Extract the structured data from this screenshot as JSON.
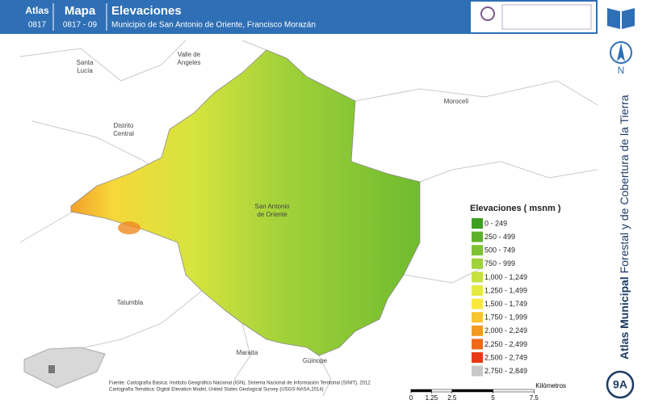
{
  "header": {
    "atlas_label": "Atlas",
    "atlas_code": "0817",
    "map_label": "Mapa",
    "map_code": "0817 - 09",
    "title": "Elevaciones",
    "subtitle": "Municipio de San Antonio de Oriente, Francisco Morazán"
  },
  "sidebar": {
    "north": "N",
    "title_bold": "Atlas Municipal",
    "title_rest": " Forestal y de Cobertura de la Tierra",
    "badge": "9A"
  },
  "places": {
    "santa_lucia": [
      "Santa",
      "Lucía"
    ],
    "valle_de_angeles": [
      "Valle",
      "de",
      "Angeles"
    ],
    "distrito_central": [
      "Distrito",
      "Central"
    ],
    "moroceli": [
      "Morocelí"
    ],
    "san_antonio": [
      "San Antonio",
      "de Oriente"
    ],
    "tatumbla": [
      "Tatumbla"
    ],
    "maraita": [
      "Maraita"
    ],
    "guinope": [
      "Güinope"
    ]
  },
  "legend": {
    "title": "Elevaciones ( msnm )",
    "items": [
      {
        "label": "0 - 249",
        "color": "#3f9e22"
      },
      {
        "label": "250 - 499",
        "color": "#5db12b"
      },
      {
        "label": "500 - 749",
        "color": "#7cc232"
      },
      {
        "label": "750 - 999",
        "color": "#a0d23a"
      },
      {
        "label": "1,000 - 1,249",
        "color": "#c6e03f"
      },
      {
        "label": "1,250 - 1,499",
        "color": "#e4ea3e"
      },
      {
        "label": "1,500 - 1,749",
        "color": "#f7e83c"
      },
      {
        "label": "1,750 - 1,999",
        "color": "#f8c42f"
      },
      {
        "label": "2,000 - 2,249",
        "color": "#f39a21"
      },
      {
        "label": "2,250 - 2,499",
        "color": "#ee6a1a"
      },
      {
        "label": "2,500 - 2,749",
        "color": "#e83a14"
      },
      {
        "label": "2,750 - 2,849",
        "color": "#c8c8c8"
      }
    ]
  },
  "scale": {
    "ticks": [
      0,
      1.25,
      2.5,
      5,
      7.5
    ],
    "unit": "Kilómetros"
  },
  "source": {
    "line1": "Fuente: Cartografía Básica: Instituto Geográfico Nacional (IGN), Sistema Nacional de Información Territorial (SINIT), 2012",
    "line2": "Cartografía Temática: Digital Elevation Model, United States Geological Survey (USGS-NASA,2014)"
  }
}
